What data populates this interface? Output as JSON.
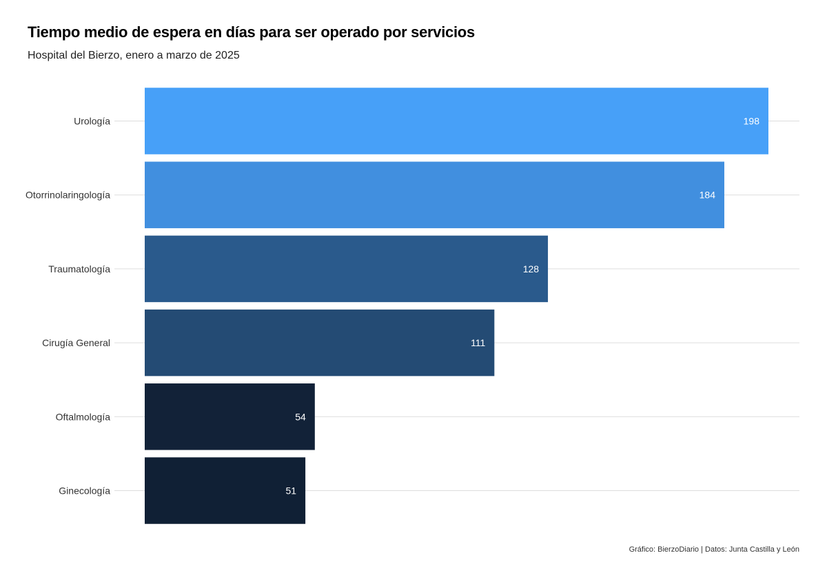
{
  "title": "Tiempo medio de espera en días para ser operado por servicios",
  "subtitle": "Hospital del Bierzo, enero a marzo de 2025",
  "caption": "Gráfico: BierzoDiario | Datos: Junta Castilla y León",
  "chart_data": {
    "type": "bar",
    "orientation": "horizontal",
    "categories": [
      "Urología",
      "Otorrinolaringología",
      "Traumatología",
      "Cirugía General",
      "Oftalmología",
      "Ginecología"
    ],
    "values": [
      198,
      184,
      128,
      111,
      54,
      51
    ],
    "colors": [
      "#47a0f8",
      "#418fdf",
      "#2a5a8c",
      "#244b74",
      "#122238",
      "#102035"
    ],
    "xlim": [
      0,
      198
    ],
    "grid": true,
    "legend": "none"
  }
}
